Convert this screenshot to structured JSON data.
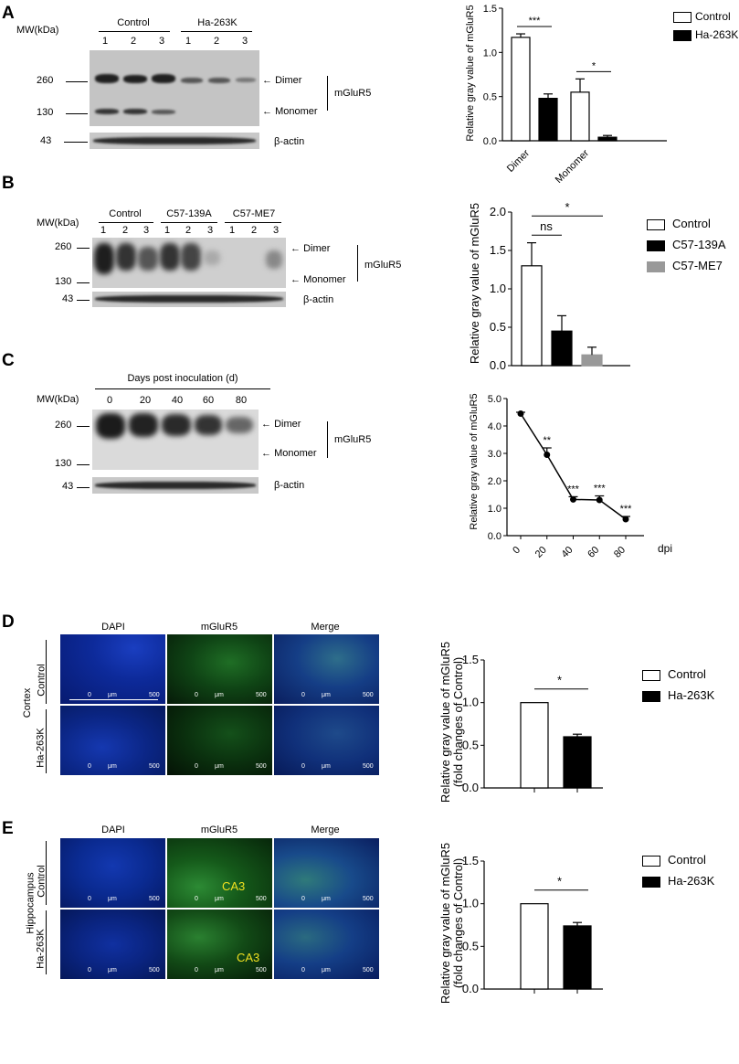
{
  "panels": {
    "A": {
      "label": "A",
      "blot": {
        "mw_label": "MW(kDa)",
        "groups": [
          {
            "name": "Control",
            "lanes": [
              "1",
              "2",
              "3"
            ]
          },
          {
            "name": "Ha-263K",
            "lanes": [
              "1",
              "2",
              "3"
            ]
          }
        ],
        "markers": [
          "260",
          "130",
          "43"
        ],
        "dimer": "Dimer",
        "monomer": "Monomer",
        "protein": "mGluR5",
        "loading": "β-actin"
      },
      "chart_data": {
        "type": "bar",
        "ylabel": "Relative gray value of mGluR5",
        "categories": [
          "Dimer",
          "Monomer"
        ],
        "series": [
          {
            "name": "Control",
            "values": [
              1.17,
              0.55
            ],
            "errors": [
              0.04,
              0.15
            ],
            "color": "#ffffff"
          },
          {
            "name": "Ha-263K",
            "values": [
              0.48,
              0.04
            ],
            "errors": [
              0.05,
              0.02
            ],
            "color": "#000000"
          }
        ],
        "ylim": [
          0,
          1.5
        ],
        "yticks": [
          "0.0",
          "0.5",
          "1.0",
          "1.5"
        ],
        "significance": [
          "***",
          "*"
        ]
      }
    },
    "B": {
      "label": "B",
      "blot": {
        "mw_label": "MW(kDa)",
        "groups": [
          {
            "name": "Control",
            "lanes": [
              "1",
              "2",
              "3"
            ]
          },
          {
            "name": "C57-139A",
            "lanes": [
              "1",
              "2",
              "3"
            ]
          },
          {
            "name": "C57-ME7",
            "lanes": [
              "1",
              "2",
              "3"
            ]
          }
        ],
        "markers": [
          "260",
          "130",
          "43"
        ],
        "dimer": "Dimer",
        "monomer": "Monomer",
        "protein": "mGluR5",
        "loading": "β-actin"
      },
      "chart_data": {
        "type": "bar",
        "ylabel": "Relative gray value of mGluR5",
        "categories": [
          "Control",
          "C57-139A",
          "C57-ME7"
        ],
        "values": [
          1.3,
          0.45,
          0.14
        ],
        "errors": [
          0.3,
          0.2,
          0.1
        ],
        "colors": [
          "#ffffff",
          "#000000",
          "#999999"
        ],
        "legend": [
          "Control",
          "C57-139A",
          "C57-ME7"
        ],
        "ylim": [
          0,
          2.0
        ],
        "yticks": [
          "0.0",
          "0.5",
          "1.0",
          "1.5",
          "2.0"
        ],
        "significance": [
          "ns",
          "*"
        ]
      }
    },
    "C": {
      "label": "C",
      "blot": {
        "mw_label": "MW(kDa)",
        "header": "Days post inoculation (d)",
        "lanes": [
          "0",
          "20",
          "40",
          "60",
          "80"
        ],
        "markers": [
          "260",
          "130",
          "43"
        ],
        "dimer": "Dimer",
        "monomer": "Monomer",
        "protein": "mGluR5",
        "loading": "β-actin"
      },
      "chart_data": {
        "type": "line",
        "ylabel": "Relative gray value of mGluR5",
        "xlabel": "dpi",
        "x": [
          0,
          20,
          40,
          60,
          80
        ],
        "y": [
          4.45,
          2.95,
          1.32,
          1.3,
          0.6
        ],
        "errors": [
          0.05,
          0.25,
          0.1,
          0.15,
          0.1
        ],
        "ylim": [
          0,
          5.0
        ],
        "yticks": [
          "0.0",
          "1.0",
          "2.0",
          "3.0",
          "4.0",
          "5.0"
        ],
        "xticks": [
          "0",
          "20",
          "40",
          "60",
          "80"
        ],
        "significance": [
          "",
          "**",
          "***",
          "***",
          "***"
        ]
      }
    },
    "D": {
      "label": "D",
      "columns": [
        "DAPI",
        "mGluR5",
        "Merge"
      ],
      "rows": [
        "Control",
        "Ha-263K"
      ],
      "region": "Cortex",
      "scale": {
        "left": "0",
        "unit": "μm",
        "right": "500"
      },
      "chart_data": {
        "type": "bar",
        "ylabel": "Relative gray value of mGluR5",
        "ylabel2": "(fold changes of Control)",
        "categories": [
          "Control",
          "Ha-263K"
        ],
        "values": [
          1.0,
          0.6
        ],
        "errors": [
          0.0,
          0.03
        ],
        "colors": [
          "#ffffff",
          "#000000"
        ],
        "legend": [
          "Control",
          "Ha-263K"
        ],
        "ylim": [
          0,
          1.5
        ],
        "yticks": [
          "0.0",
          "0.5",
          "1.0",
          "1.5"
        ],
        "significance": [
          "*"
        ]
      }
    },
    "E": {
      "label": "E",
      "columns": [
        "DAPI",
        "mGluR5",
        "Merge"
      ],
      "rows": [
        "Control",
        "Ha-263K"
      ],
      "region": "Hippocampus",
      "ca3": "CA3",
      "scale": {
        "left": "0",
        "unit": "μm",
        "right": "500"
      },
      "chart_data": {
        "type": "bar",
        "ylabel": "Relative gray value of mGluR5",
        "ylabel2": "(fold changes of Control)",
        "categories": [
          "Control",
          "Ha-263K"
        ],
        "values": [
          1.0,
          0.74
        ],
        "errors": [
          0.0,
          0.04
        ],
        "colors": [
          "#ffffff",
          "#000000"
        ],
        "legend": [
          "Control",
          "Ha-263K"
        ],
        "ylim": [
          0,
          1.5
        ],
        "yticks": [
          "0.0",
          "0.5",
          "1.0",
          "1.5"
        ],
        "significance": [
          "*"
        ]
      }
    }
  }
}
